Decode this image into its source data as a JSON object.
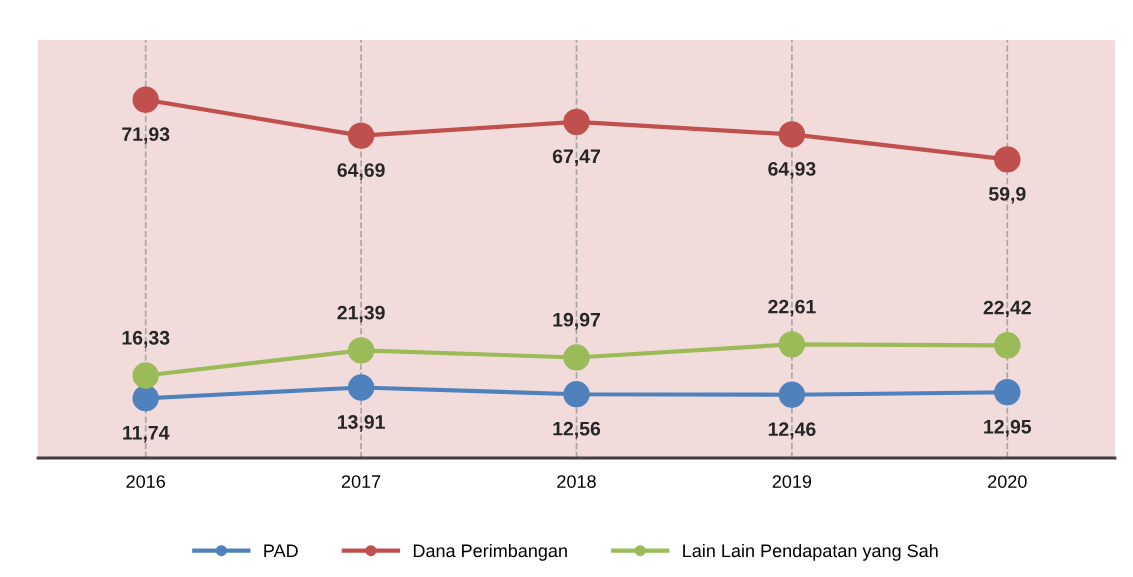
{
  "chart_data": {
    "type": "line",
    "categories": [
      "2016",
      "2017",
      "2018",
      "2019",
      "2020"
    ],
    "series": [
      {
        "name": "PAD",
        "color": "#4f81bd",
        "values": [
          11.74,
          13.91,
          12.56,
          12.46,
          12.95
        ],
        "value_labels": [
          "11,74",
          "13,91",
          "12,56",
          "12,46",
          "12,95"
        ]
      },
      {
        "name": "Dana Perimbangan",
        "color": "#c0504d",
        "values": [
          71.93,
          64.69,
          67.47,
          64.93,
          59.9
        ],
        "value_labels": [
          "71,93",
          "64,69",
          "67,47",
          "64,93",
          "59,9"
        ]
      },
      {
        "name": "Lain Lain Pendapatan yang Sah",
        "color": "#9bbb59",
        "values": [
          16.33,
          21.39,
          19.97,
          22.61,
          22.42
        ],
        "value_labels": [
          "16,33",
          "21,39",
          "19,97",
          "22,61",
          "22,42"
        ]
      }
    ],
    "tick_labels": "x",
    "marker": "circle",
    "line_style": "solid",
    "grid": false,
    "legend": "bottom",
    "ref_lines": [
      {
        "axis": "x",
        "value": "2016",
        "color": "#a6a6a6",
        "line_style": "dashed"
      },
      {
        "axis": "x",
        "value": "2017",
        "color": "#a6a6a6",
        "line_style": "dashed"
      },
      {
        "axis": "x",
        "value": "2018",
        "color": "#a6a6a6",
        "line_style": "dashed"
      },
      {
        "axis": "x",
        "value": "2019",
        "color": "#a6a6a6",
        "line_style": "dashed"
      },
      {
        "axis": "x",
        "value": "2020",
        "color": "#a6a6a6",
        "line_style": "dashed"
      }
    ]
  }
}
